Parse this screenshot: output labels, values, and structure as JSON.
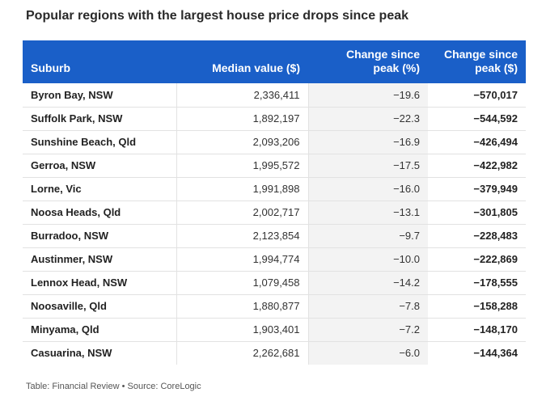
{
  "title": "Popular regions with the largest house price drops since peak",
  "footer": "Table: Financial Review • Source: CoreLogic",
  "chart_data": {
    "type": "table",
    "columns": [
      "Suburb",
      "Median value ($)",
      "Change since peak (%)",
      "Change since peak ($)"
    ],
    "rows": [
      [
        "Byron Bay, NSW",
        "2,336,411",
        "−19.6",
        "−570,017"
      ],
      [
        "Suffolk Park, NSW",
        "1,892,197",
        "−22.3",
        "−544,592"
      ],
      [
        "Sunshine Beach, Qld",
        "2,093,206",
        "−16.9",
        "−426,494"
      ],
      [
        "Gerroa, NSW",
        "1,995,572",
        "−17.5",
        "−422,982"
      ],
      [
        "Lorne, Vic",
        "1,991,898",
        "−16.0",
        "−379,949"
      ],
      [
        "Noosa Heads, Qld",
        "2,002,717",
        "−13.1",
        "−301,805"
      ],
      [
        "Burradoo, NSW",
        "2,123,854",
        "−9.7",
        "−228,483"
      ],
      [
        "Austinmer, NSW",
        "1,994,774",
        "−10.0",
        "−222,869"
      ],
      [
        "Lennox Head, NSW",
        "1,079,458",
        "−14.2",
        "−178,555"
      ],
      [
        "Noosaville, Qld",
        "1,880,877",
        "−7.8",
        "−158,288"
      ],
      [
        "Minyama, Qld",
        "1,903,401",
        "−7.2",
        "−148,170"
      ],
      [
        "Casuarina, NSW",
        "2,262,681",
        "−6.0",
        "−144,364"
      ]
    ],
    "header_color": "#1a5fc8",
    "highlight_column_color": "#f3f3f3"
  }
}
